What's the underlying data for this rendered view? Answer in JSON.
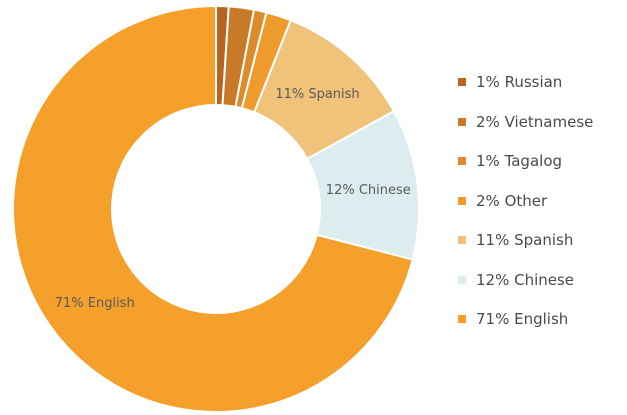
{
  "chart_data": {
    "type": "pie",
    "style": "donut",
    "title": "",
    "legend_position": "right",
    "slices": [
      {
        "label": "1% Russian",
        "value": 1,
        "color": "#b76521",
        "slice_label": ""
      },
      {
        "label": "2% Vietnamese",
        "value": 2,
        "color": "#c97a28",
        "slice_label": ""
      },
      {
        "label": "1% Tagalog",
        "value": 1,
        "color": "#dd8b2b",
        "slice_label": ""
      },
      {
        "label": "2% Other",
        "value": 2,
        "color": "#ef9b2c",
        "slice_label": ""
      },
      {
        "label": "11% Spanish",
        "value": 11,
        "color": "#f0c27a",
        "slice_label": "11% Spanish"
      },
      {
        "label": "12% Chinese",
        "value": 12,
        "color": "#dcecef",
        "slice_label": "12% Chinese"
      },
      {
        "label": "71% English",
        "value": 71,
        "color": "#f5a02a",
        "slice_label": "71% English"
      }
    ]
  }
}
